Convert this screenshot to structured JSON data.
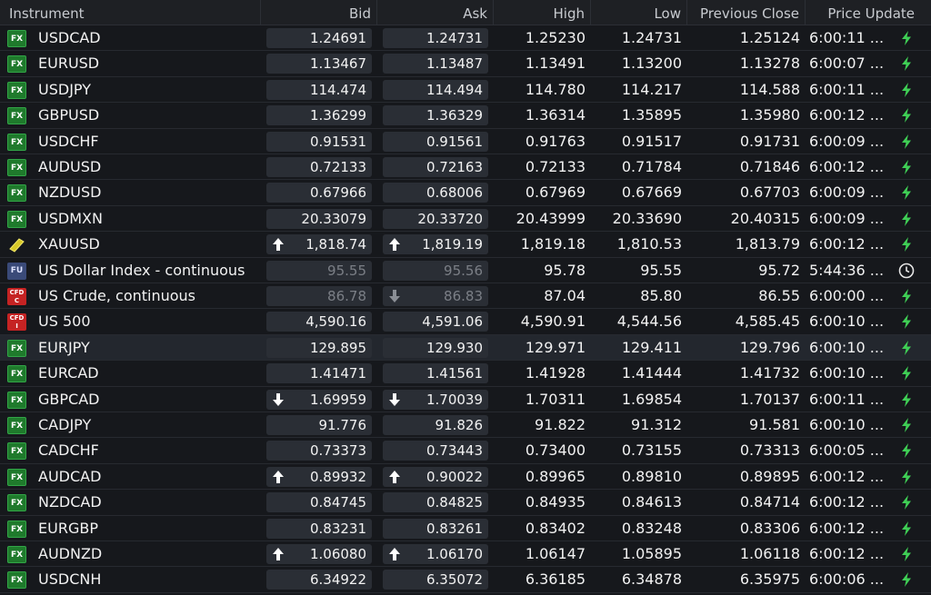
{
  "columns": [
    "Instrument",
    "Bid",
    "Ask",
    "High",
    "Low",
    "Previous Close",
    "Price Update"
  ],
  "rows": [
    {
      "type": "FX",
      "name": "USDCAD",
      "bid": "1.24691",
      "ask": "1.24731",
      "high": "1.25230",
      "low": "1.24731",
      "prev": "1.25124",
      "time": "6:00:11 ...",
      "status": "live"
    },
    {
      "type": "FX",
      "name": "EURUSD",
      "bid": "1.13467",
      "ask": "1.13487",
      "high": "1.13491",
      "low": "1.13200",
      "prev": "1.13278",
      "time": "6:00:07 ...",
      "status": "live"
    },
    {
      "type": "FX",
      "name": "USDJPY",
      "bid": "114.474",
      "ask": "114.494",
      "high": "114.780",
      "low": "114.217",
      "prev": "114.588",
      "time": "6:00:11 ...",
      "status": "live"
    },
    {
      "type": "FX",
      "name": "GBPUSD",
      "bid": "1.36299",
      "ask": "1.36329",
      "high": "1.36314",
      "low": "1.35895",
      "prev": "1.35980",
      "time": "6:00:12 ...",
      "status": "live"
    },
    {
      "type": "FX",
      "name": "USDCHF",
      "bid": "0.91531",
      "ask": "0.91561",
      "high": "0.91763",
      "low": "0.91517",
      "prev": "0.91731",
      "time": "6:00:09 ...",
      "status": "live"
    },
    {
      "type": "FX",
      "name": "AUDUSD",
      "bid": "0.72133",
      "ask": "0.72163",
      "high": "0.72133",
      "low": "0.71784",
      "prev": "0.71846",
      "time": "6:00:12 ...",
      "status": "live"
    },
    {
      "type": "FX",
      "name": "NZDUSD",
      "bid": "0.67966",
      "ask": "0.68006",
      "high": "0.67969",
      "low": "0.67669",
      "prev": "0.67703",
      "time": "6:00:09 ...",
      "status": "live"
    },
    {
      "type": "FX",
      "name": "USDMXN",
      "bid": "20.33079",
      "ask": "20.33720",
      "high": "20.43999",
      "low": "20.33690",
      "prev": "20.40315",
      "time": "6:00:09 ...",
      "status": "live"
    },
    {
      "type": "GOLD",
      "name": "XAUUSD",
      "bid": "1,818.74",
      "ask": "1,819.19",
      "high": "1,819.18",
      "low": "1,810.53",
      "prev": "1,813.79",
      "time": "6:00:12 ...",
      "status": "live",
      "bidArrow": "up",
      "askArrow": "up"
    },
    {
      "type": "FU",
      "name": "US Dollar Index - continuous",
      "bid": "95.55",
      "ask": "95.56",
      "high": "95.78",
      "low": "95.55",
      "prev": "95.72",
      "time": "5:44:36 ...",
      "status": "delayed",
      "dim": true
    },
    {
      "type": "CFD",
      "sub": "C",
      "name": "US Crude, continuous",
      "bid": "86.78",
      "ask": "86.83",
      "high": "87.04",
      "low": "85.80",
      "prev": "86.55",
      "time": "6:00:00 ...",
      "status": "live",
      "dim": true,
      "askArrow": "down-dim"
    },
    {
      "type": "CFD",
      "sub": "I",
      "name": "US 500",
      "bid": "4,590.16",
      "ask": "4,591.06",
      "high": "4,590.91",
      "low": "4,544.56",
      "prev": "4,585.45",
      "time": "6:00:10 ...",
      "status": "live"
    },
    {
      "type": "FX",
      "name": "EURJPY",
      "bid": "129.895",
      "ask": "129.930",
      "high": "129.971",
      "low": "129.411",
      "prev": "129.796",
      "time": "6:00:10 ...",
      "status": "live",
      "highlight": true
    },
    {
      "type": "FX",
      "name": "EURCAD",
      "bid": "1.41471",
      "ask": "1.41561",
      "high": "1.41928",
      "low": "1.41444",
      "prev": "1.41732",
      "time": "6:00:10 ...",
      "status": "live"
    },
    {
      "type": "FX",
      "name": "GBPCAD",
      "bid": "1.69959",
      "ask": "1.70039",
      "high": "1.70311",
      "low": "1.69854",
      "prev": "1.70137",
      "time": "6:00:11 ...",
      "status": "live",
      "bidArrow": "down",
      "askArrow": "down"
    },
    {
      "type": "FX",
      "name": "CADJPY",
      "bid": "91.776",
      "ask": "91.826",
      "high": "91.822",
      "low": "91.312",
      "prev": "91.581",
      "time": "6:00:10 ...",
      "status": "live"
    },
    {
      "type": "FX",
      "name": "CADCHF",
      "bid": "0.73373",
      "ask": "0.73443",
      "high": "0.73400",
      "low": "0.73155",
      "prev": "0.73313",
      "time": "6:00:05 ...",
      "status": "live"
    },
    {
      "type": "FX",
      "name": "AUDCAD",
      "bid": "0.89932",
      "ask": "0.90022",
      "high": "0.89965",
      "low": "0.89810",
      "prev": "0.89895",
      "time": "6:00:12 ...",
      "status": "live",
      "bidArrow": "up",
      "askArrow": "up"
    },
    {
      "type": "FX",
      "name": "NZDCAD",
      "bid": "0.84745",
      "ask": "0.84825",
      "high": "0.84935",
      "low": "0.84613",
      "prev": "0.84714",
      "time": "6:00:12 ...",
      "status": "live"
    },
    {
      "type": "FX",
      "name": "EURGBP",
      "bid": "0.83231",
      "ask": "0.83261",
      "high": "0.83402",
      "low": "0.83248",
      "prev": "0.83306",
      "time": "6:00:12 ...",
      "status": "live"
    },
    {
      "type": "FX",
      "name": "AUDNZD",
      "bid": "1.06080",
      "ask": "1.06170",
      "high": "1.06147",
      "low": "1.05895",
      "prev": "1.06118",
      "time": "6:00:12 ...",
      "status": "live",
      "bidArrow": "up",
      "askArrow": "up"
    },
    {
      "type": "FX",
      "name": "USDCNH",
      "bid": "6.34922",
      "ask": "6.35072",
      "high": "6.36185",
      "low": "6.34878",
      "prev": "6.35975",
      "time": "6:00:06 ...",
      "status": "live"
    }
  ],
  "colors": {
    "accent_green": "#3fcf55",
    "fx_badge": "#1f7a2c",
    "cfd_badge": "#c52323",
    "fu_badge": "#3a4a78"
  }
}
